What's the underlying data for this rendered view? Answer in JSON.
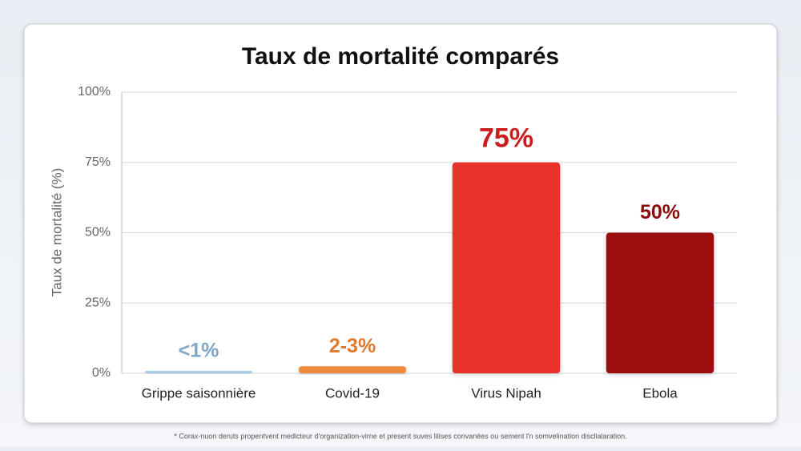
{
  "chart_data": {
    "type": "bar",
    "title": "Taux de mortalité comparés",
    "y_label": "Taux de mortalité (%)",
    "categories": [
      "Grippe saisonnière",
      "Covid-19",
      "Virus Nipah",
      "Ebola"
    ],
    "values": [
      0.9,
      2.5,
      75,
      50
    ],
    "value_labels": [
      "<1%",
      "2-3%",
      "75%",
      "50%"
    ],
    "colors": [
      "#a9cfe9",
      "#f08a3c",
      "#e8302a",
      "#9c0a0a"
    ],
    "label_colors": [
      "#7fa7ca",
      "#e07a2a",
      "#c81f1c",
      "#8d0b0b"
    ],
    "ylim": [
      0,
      100
    ],
    "yticks": [
      {
        "value": 0,
        "label": "0%"
      },
      {
        "value": 25,
        "label": "25%"
      },
      {
        "value": 50,
        "label": "50%"
      },
      {
        "value": 75,
        "label": "75%"
      },
      {
        "value": 100,
        "label": "100%"
      }
    ],
    "grid": true,
    "footnote": "* Corax-nuon deruts propentvent medicteur d'organization-virne et present suves lilises convanées ou sement l'n somvelination disclialaration."
  }
}
